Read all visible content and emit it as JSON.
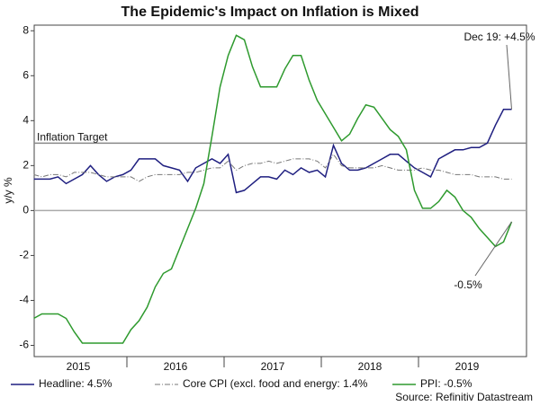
{
  "chart_data": {
    "type": "line",
    "title": "The Epidemic's Impact on Inflation is Mixed",
    "y_label": "y/y %",
    "categories": [
      null,
      null,
      null,
      null,
      null,
      null,
      "2015",
      null,
      null,
      null,
      null,
      null,
      null,
      null,
      null,
      null,
      null,
      null,
      "2016",
      null,
      null,
      null,
      null,
      null,
      null,
      null,
      null,
      null,
      null,
      null,
      "2017",
      null,
      null,
      null,
      null,
      null,
      null,
      null,
      null,
      null,
      null,
      null,
      "2018",
      null,
      null,
      null,
      null,
      null,
      null,
      null,
      null,
      null,
      null,
      null,
      "2019",
      null,
      null,
      null,
      null,
      null
    ],
    "series": [
      {
        "name": "Headline: 4.5%",
        "color": "#1f1f80",
        "dash": "solid",
        "values": [
          1.4,
          1.4,
          1.4,
          1.5,
          1.2,
          1.4,
          1.6,
          2.0,
          1.6,
          1.3,
          1.5,
          1.6,
          1.8,
          2.3,
          2.3,
          2.3,
          2.0,
          1.9,
          1.8,
          1.3,
          1.9,
          2.1,
          2.3,
          2.1,
          2.5,
          0.8,
          0.9,
          1.2,
          1.5,
          1.5,
          1.4,
          1.8,
          1.6,
          1.9,
          1.7,
          1.8,
          1.5,
          2.9,
          2.1,
          1.8,
          1.8,
          1.9,
          2.1,
          2.3,
          2.5,
          2.5,
          2.2,
          1.9,
          1.7,
          1.5,
          2.3,
          2.5,
          2.7,
          2.7,
          2.8,
          2.8,
          3.0,
          3.8,
          4.5,
          4.5
        ]
      },
      {
        "name": "Core CPI (excl. food and energy: 1.4%",
        "color": "#777777",
        "dash": "dashdot",
        "values": [
          1.6,
          1.5,
          1.6,
          1.6,
          1.5,
          1.7,
          1.7,
          1.7,
          1.6,
          1.5,
          1.5,
          1.5,
          1.5,
          1.3,
          1.5,
          1.6,
          1.6,
          1.6,
          1.6,
          1.7,
          1.7,
          1.8,
          1.9,
          1.9,
          2.2,
          1.8,
          2.0,
          2.1,
          2.1,
          2.2,
          2.1,
          2.2,
          2.3,
          2.3,
          2.3,
          2.2,
          1.9,
          2.5,
          2.0,
          1.9,
          1.9,
          1.9,
          1.9,
          2.0,
          1.9,
          1.8,
          1.8,
          1.8,
          1.9,
          1.8,
          1.8,
          1.7,
          1.6,
          1.6,
          1.6,
          1.5,
          1.5,
          1.5,
          1.4,
          1.4
        ]
      },
      {
        "name": "PPI: -0.5%",
        "color": "#2e9a2e",
        "dash": "solid",
        "values": [
          -4.8,
          -4.6,
          -4.6,
          -4.6,
          -4.8,
          -5.4,
          -5.9,
          -5.9,
          -5.9,
          -5.9,
          -5.9,
          -5.9,
          -5.3,
          -4.9,
          -4.3,
          -3.4,
          -2.8,
          -2.6,
          -1.7,
          -0.8,
          0.1,
          1.2,
          3.3,
          5.5,
          6.9,
          7.8,
          7.6,
          6.4,
          5.5,
          5.5,
          5.5,
          6.3,
          6.9,
          6.9,
          5.8,
          4.9,
          4.3,
          3.7,
          3.1,
          3.4,
          4.1,
          4.7,
          4.6,
          4.1,
          3.6,
          3.3,
          2.7,
          0.9,
          0.1,
          0.1,
          0.4,
          0.9,
          0.6,
          0.0,
          -0.3,
          -0.8,
          -1.2,
          -1.6,
          -1.4,
          -0.5
        ]
      }
    ],
    "ylim": [
      -6.5,
      8.25
    ],
    "yticks": [
      -6,
      -4,
      -2,
      0,
      2,
      4,
      6,
      8
    ],
    "reference_lines": [
      {
        "value": 3,
        "label": "Inflation Target",
        "color": "#888888"
      },
      {
        "value": 0,
        "color": "#aaaaaa"
      }
    ],
    "annotations": [
      "Dec 19: +4.5%",
      "-0.5%"
    ],
    "source": "Source: Refinitiv Datastream",
    "legend": "bottom"
  }
}
